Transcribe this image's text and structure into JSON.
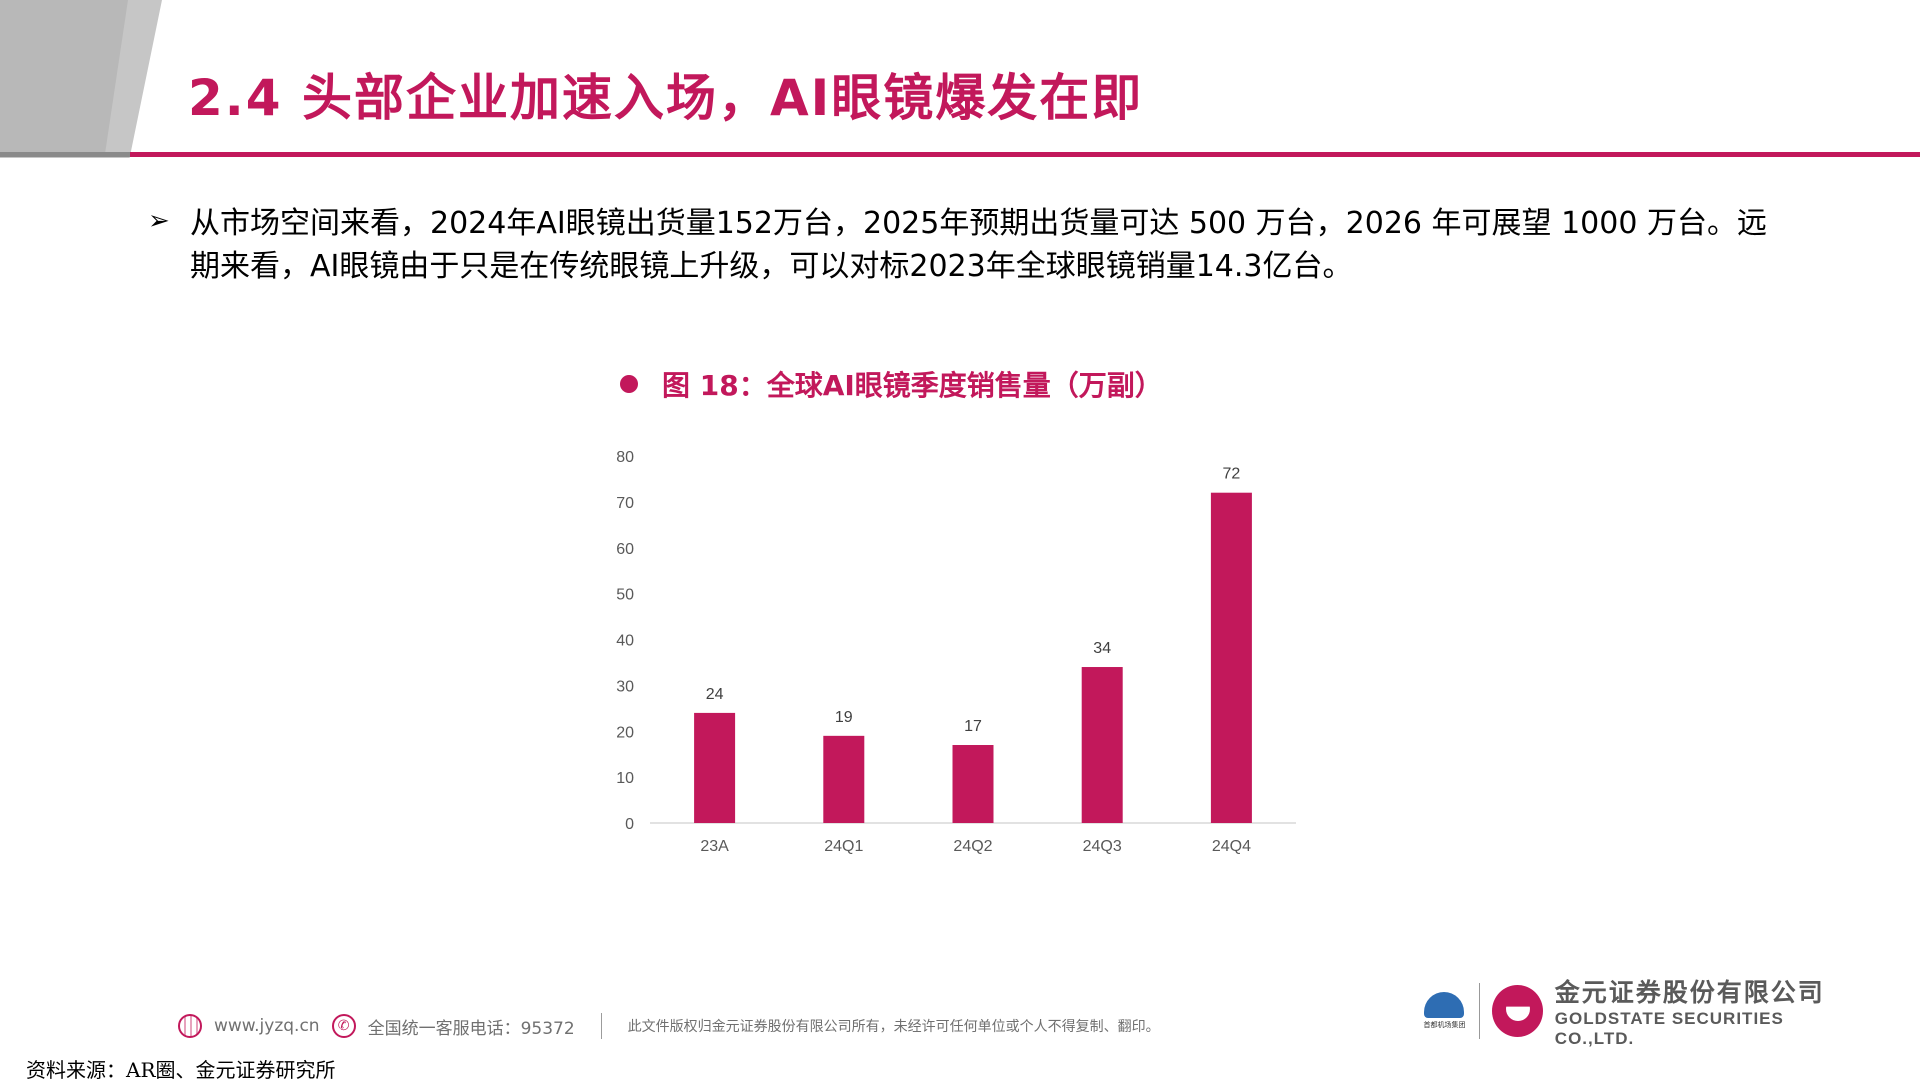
{
  "slide": {
    "title": "2.4 头部企业加速入场，AI眼镜爆发在即",
    "bullet": "从市场空间来看，2024年AI眼镜出货量152万台，2025年预期出货量可达 500 万台，2026 年可展望 1000 万台。远期来看，AI眼镜由于只是在传统眼镜上升级，可以对标2023年全球眼镜销量14.3亿台。",
    "figure_title": "图 18：全球AI眼镜季度销售量（万副）",
    "source": "资料来源：AR圈、金元证券研究所"
  },
  "chart_data": {
    "type": "bar",
    "title": "",
    "xlabel": "",
    "ylabel": "",
    "categories": [
      "23A",
      "24Q1",
      "24Q2",
      "24Q3",
      "24Q4"
    ],
    "values": [
      24,
      19,
      17,
      34,
      72
    ],
    "data_labels": [
      "24",
      "19",
      "17",
      "34",
      "72"
    ],
    "ylim": [
      0,
      80
    ],
    "yticks": [
      0,
      10,
      20,
      30,
      40,
      50,
      60,
      70,
      80
    ],
    "grid": false,
    "bar_color": "#C2185B"
  },
  "footer": {
    "website": "www.jyzq.cn",
    "hotline": "全国统一客服电话：95372",
    "copyright": "此文件版权归金元证券股份有限公司所有，未经许可任何单位或个人不得复制、翻印。"
  },
  "logo": {
    "group_caption": "首都机场集团",
    "company_cn": "金元证券股份有限公司",
    "company_en": "GOLDSTATE SECURITIES CO.,LTD."
  },
  "colors": {
    "accent": "#C2185B",
    "header_gray": "#C6C6C6"
  }
}
